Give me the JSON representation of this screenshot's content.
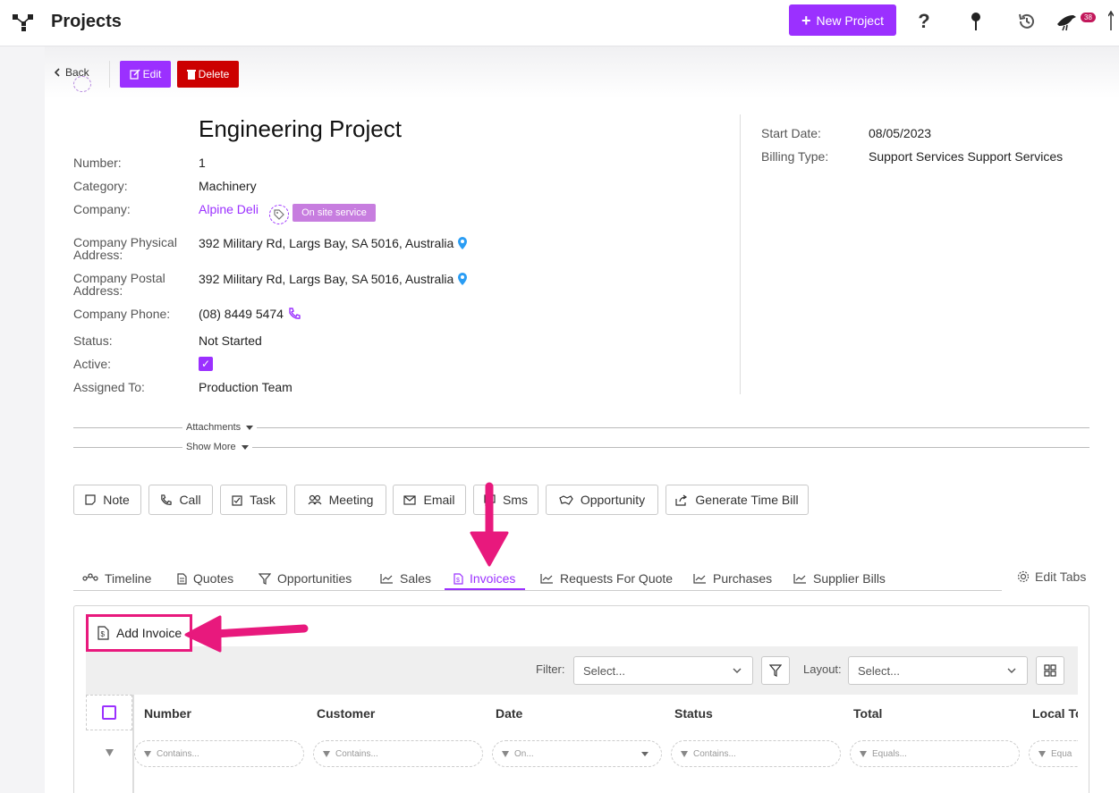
{
  "header": {
    "title": "Projects",
    "new_project_label": "New Project",
    "notification_count": "38"
  },
  "toolbar": {
    "back_label": "Back",
    "edit_label": "Edit",
    "delete_label": "Delete"
  },
  "project": {
    "title": "Engineering Project",
    "fields": [
      {
        "label": "Number:",
        "value": "1"
      },
      {
        "label": "Category:",
        "value": "Machinery"
      },
      {
        "label": "Company:",
        "value": "Alpine Deli"
      },
      {
        "label": "Company Physical Address:",
        "value": "392 Military Rd, Largs Bay, SA 5016, Australia"
      },
      {
        "label": "Company Postal Address:",
        "value": "392 Military Rd, Largs Bay, SA 5016, Australia"
      },
      {
        "label": "Company Phone:",
        "value": "(08) 8449 5474"
      },
      {
        "label": "Status:",
        "value": "Not Started"
      },
      {
        "label": "Active:",
        "value": ""
      },
      {
        "label": "Assigned To:",
        "value": "Production Team"
      }
    ],
    "company_tag": "On site service",
    "active_checked": true,
    "start_date_label": "Start Date:",
    "start_date": "08/05/2023",
    "billing_type_label": "Billing Type:",
    "billing_type": "Support Services Support Services"
  },
  "collapsibles": {
    "attachments": "Attachments",
    "show_more": "Show More"
  },
  "activity_buttons": [
    "Note",
    "Call",
    "Task",
    "Meeting",
    "Email",
    "Sms",
    "Opportunity",
    "Generate Time Bill"
  ],
  "tabs": {
    "items": [
      "Timeline",
      "Quotes",
      "Opportunities",
      "Sales",
      "Invoices",
      "Requests For Quote",
      "Purchases",
      "Supplier Bills"
    ],
    "active": "Invoices",
    "edit_label": "Edit Tabs"
  },
  "invoices": {
    "add_label": "Add Invoice",
    "filter_label": "Filter:",
    "filter_placeholder": "Select...",
    "layout_label": "Layout:",
    "layout_placeholder": "Select...",
    "columns": [
      "Number",
      "Customer",
      "Date",
      "Status",
      "Total",
      "Local To"
    ],
    "column_filters": [
      "Contains...",
      "Contains...",
      "On...",
      "Contains...",
      "Equals...",
      "Equa"
    ]
  },
  "colors": {
    "accent": "#9b30ff",
    "danger": "#cc0000",
    "annotation": "#e8197d"
  }
}
